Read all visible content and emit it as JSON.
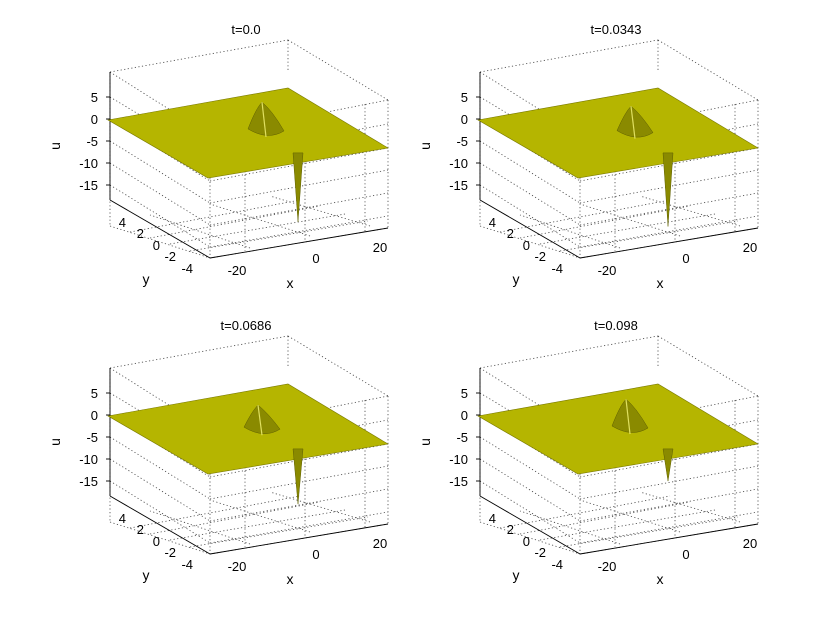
{
  "figure": {
    "surface_color": "#b5b500",
    "surface_shade": "#8a8a00",
    "background": "#ffffff"
  },
  "chart_data": [
    {
      "type": "surface",
      "title": "t=0.0",
      "xlabel": "x",
      "ylabel": "y",
      "zlabel": "u",
      "xticks": [
        "-20",
        "0",
        "20"
      ],
      "yticks": [
        "4",
        "2",
        "0",
        "-2",
        "-4"
      ],
      "zticks": [
        "5",
        "0",
        "-5",
        "-10",
        "-15"
      ],
      "xlim": [
        -30,
        30
      ],
      "ylim": [
        -5,
        5
      ],
      "zlim": [
        -17,
        7
      ],
      "features": [
        {
          "kind": "hump",
          "x": 8,
          "y": 1.0,
          "u": 4.5
        },
        {
          "kind": "spike",
          "x": 4,
          "y": -3.8,
          "u": -15
        }
      ]
    },
    {
      "type": "surface",
      "title": "t=0.0343",
      "xlabel": "x",
      "ylabel": "y",
      "zlabel": "u",
      "xticks": [
        "-20",
        "0",
        "20"
      ],
      "yticks": [
        "4",
        "2",
        "0",
        "-2",
        "-4"
      ],
      "zticks": [
        "5",
        "0",
        "-5",
        "-10",
        "-15"
      ],
      "xlim": [
        -30,
        30
      ],
      "ylim": [
        -5,
        5
      ],
      "zlim": [
        -17,
        7
      ],
      "features": [
        {
          "kind": "hump",
          "x": 7,
          "y": 0.8,
          "u": 4.0
        },
        {
          "kind": "spike",
          "x": 4,
          "y": -3.8,
          "u": -16
        }
      ]
    },
    {
      "type": "surface",
      "title": "t=0.0686",
      "xlabel": "x",
      "ylabel": "y",
      "zlabel": "u",
      "xticks": [
        "-20",
        "0",
        "20"
      ],
      "yticks": [
        "4",
        "2",
        "0",
        "-2",
        "-4"
      ],
      "zticks": [
        "5",
        "0",
        "-5",
        "-10",
        "-15"
      ],
      "xlim": [
        -30,
        30
      ],
      "ylim": [
        -5,
        5
      ],
      "zlim": [
        -17,
        7
      ],
      "features": [
        {
          "kind": "hump",
          "x": 6,
          "y": 0.8,
          "u": 3.5
        },
        {
          "kind": "spike",
          "x": 4,
          "y": -3.8,
          "u": -12
        }
      ]
    },
    {
      "type": "surface",
      "title": "t=0.098",
      "xlabel": "x",
      "ylabel": "y",
      "zlabel": "u",
      "xticks": [
        "-20",
        "0",
        "20"
      ],
      "yticks": [
        "4",
        "2",
        "0",
        "-2",
        "-4"
      ],
      "zticks": [
        "5",
        "0",
        "-5",
        "-10",
        "-15"
      ],
      "xlim": [
        -30,
        30
      ],
      "ylim": [
        -5,
        5
      ],
      "zlim": [
        -17,
        7
      ],
      "features": [
        {
          "kind": "hump",
          "x": 6,
          "y": 1.0,
          "u": 4.5
        },
        {
          "kind": "spike",
          "x": 4,
          "y": -3.8,
          "u": -7
        }
      ]
    }
  ]
}
